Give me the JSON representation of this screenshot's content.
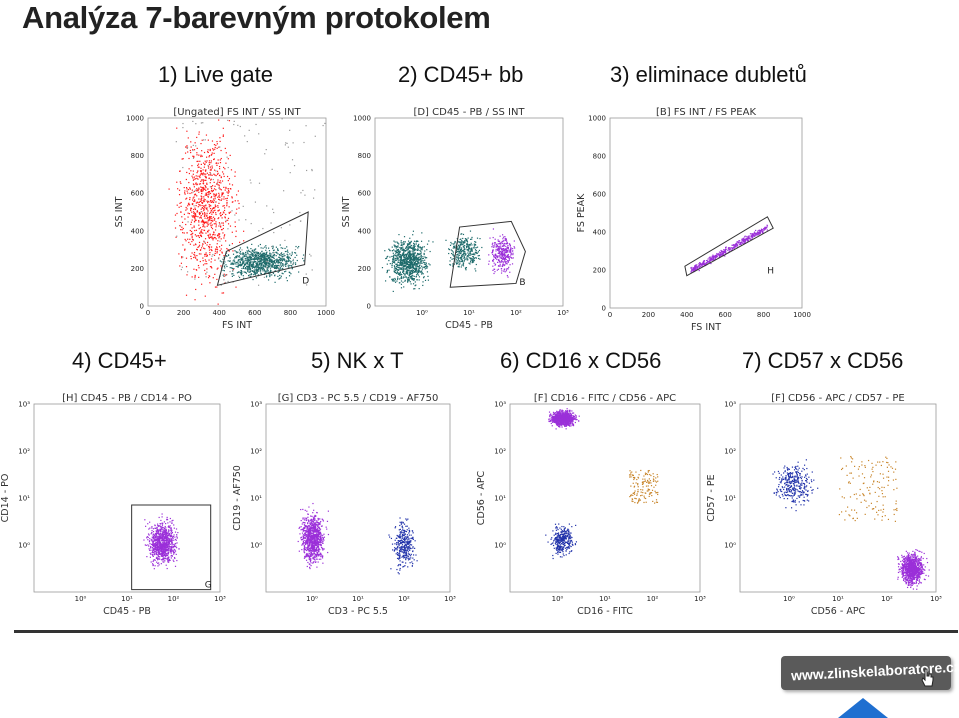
{
  "slide": {
    "title": "Analýza 7-barevným protokolem",
    "captions": [
      "1) Live gate",
      "2) CD45+ bb",
      "3) eliminace dubletů",
      "4) CD45+",
      "5)  NK x T",
      "6) CD16 x CD56",
      "7) CD57 x CD56"
    ],
    "url": "www.zlinskelaboratore.cz",
    "colors": {
      "live": "#ff1a1a",
      "gated": "#1e6b6b",
      "nk": "#8a2be2",
      "blue": "#1a2aa8",
      "orange": "#c8852a",
      "gate_line": "#333333"
    }
  },
  "chart_data": [
    {
      "type": "scatter",
      "title": "[Ungated] FS INT / SS INT",
      "xlabel": "FS INT",
      "ylabel": "SS INT",
      "xlim": [
        0,
        1000
      ],
      "ylim": [
        0,
        1000
      ],
      "xticks": [
        0,
        200,
        400,
        600,
        800,
        1000
      ],
      "yticks": [
        0,
        200,
        400,
        600,
        800,
        1000
      ],
      "gates": [
        {
          "label": "D",
          "points": [
            [
              390,
              110
            ],
            [
              880,
              220
            ],
            [
              900,
              500
            ],
            [
              440,
              290
            ]
          ]
        }
      ],
      "clusters": [
        {
          "color": "red",
          "x": [
            130,
            520
          ],
          "y": [
            50,
            1000
          ],
          "density": "high"
        },
        {
          "color": "teal",
          "x": [
            400,
            860
          ],
          "y": [
            140,
            330
          ],
          "density": "high"
        },
        {
          "color": "grey",
          "x": [
            150,
            1000
          ],
          "y": [
            100,
            1000
          ],
          "density": "low"
        }
      ]
    },
    {
      "type": "scatter",
      "title": "[D] CD45 - PB / SS INT",
      "xlabel": "CD45 - PB",
      "ylabel": "SS INT",
      "xscale": "log",
      "xlim": [
        -1,
        3
      ],
      "ylim": [
        0,
        1000
      ],
      "xticks": [
        "10⁰",
        "10¹",
        "10²",
        "10³"
      ],
      "yticks": [
        0,
        200,
        400,
        600,
        800,
        1000
      ],
      "gates": [
        {
          "label": "B",
          "points": [
            [
              0.6,
              100
            ],
            [
              2.0,
              120
            ],
            [
              2.2,
              290
            ],
            [
              1.9,
              450
            ],
            [
              0.8,
              420
            ]
          ]
        }
      ],
      "clusters": [
        {
          "color": "teal",
          "x": [
            -0.8,
            0.2
          ],
          "y": [
            100,
            380
          ],
          "density": "high"
        },
        {
          "color": "teal",
          "x": [
            0.5,
            1.3
          ],
          "y": [
            180,
            400
          ],
          "density": "medium"
        },
        {
          "color": "purple",
          "x": [
            1.4,
            2.0
          ],
          "y": [
            150,
            400
          ],
          "density": "medium"
        }
      ]
    },
    {
      "type": "scatter",
      "title": "[B] FS INT / FS PEAK",
      "xlabel": "FS INT",
      "ylabel": "FS PEAK",
      "xlim": [
        0,
        1000
      ],
      "ylim": [
        0,
        1000
      ],
      "xticks": [
        0,
        200,
        400,
        600,
        800,
        1000
      ],
      "yticks": [
        0,
        200,
        400,
        600,
        800,
        1000
      ],
      "gates": [
        {
          "label": "H",
          "points": [
            [
              400,
              170
            ],
            [
              850,
              420
            ],
            [
              820,
              480
            ],
            [
              390,
              220
            ]
          ]
        }
      ],
      "clusters": [
        {
          "color": "purple",
          "x": [
            420,
            820
          ],
          "y": [
            200,
            430
          ],
          "density": "diagonal"
        }
      ]
    },
    {
      "type": "scatter",
      "title": "[H] CD45 - PB / CD14 - PO",
      "xlabel": "CD45 - PB",
      "ylabel": "CD14 - PO",
      "xscale": "log",
      "yscale": "log",
      "xlim": [
        -1,
        3
      ],
      "ylim": [
        -1,
        3
      ],
      "xticks": [
        "10⁰",
        "10¹",
        "10²",
        "10³"
      ],
      "yticks": [
        "10⁰",
        "10¹",
        "10²",
        "10³"
      ],
      "gates": [
        {
          "label": "G",
          "points": [
            [
              1.1,
              -0.95
            ],
            [
              2.8,
              -0.95
            ],
            [
              2.8,
              0.85
            ],
            [
              1.1,
              0.85
            ]
          ]
        }
      ],
      "clusters": [
        {
          "color": "purple",
          "x": [
            1.4,
            2.1
          ],
          "y": [
            -0.5,
            0.6
          ],
          "density": "high"
        }
      ]
    },
    {
      "type": "scatter",
      "title": "[G] CD3 - PC 5.5 / CD19 - AF750",
      "xlabel": "CD3 - PC 5.5",
      "ylabel": "CD19 - AF750",
      "xscale": "log",
      "yscale": "log",
      "xlim": [
        -1,
        3
      ],
      "ylim": [
        -1,
        3
      ],
      "xticks": [
        "10⁰",
        "10¹",
        "10²",
        "10³"
      ],
      "yticks": [
        "10⁰",
        "10¹",
        "10²",
        "10³"
      ],
      "clusters": [
        {
          "color": "purple",
          "x": [
            -0.3,
            0.3
          ],
          "y": [
            -0.5,
            0.8
          ],
          "density": "high"
        },
        {
          "color": "blue",
          "x": [
            1.7,
            2.3
          ],
          "y": [
            -0.6,
            0.6
          ],
          "density": "medium"
        }
      ]
    },
    {
      "type": "scatter",
      "title": "[F] CD16 - FITC / CD56 - APC",
      "xlabel": "CD16 - FITC",
      "ylabel": "CD56 - APC",
      "xscale": "log",
      "yscale": "log",
      "xlim": [
        -1,
        3
      ],
      "ylim": [
        -1,
        3
      ],
      "xticks": [
        "10⁰",
        "10¹",
        "10²",
        "10³"
      ],
      "yticks": [
        "10⁰",
        "10¹",
        "10²",
        "10³"
      ],
      "clusters": [
        {
          "color": "purple",
          "x": [
            -0.2,
            0.4
          ],
          "y": [
            2.5,
            2.9
          ],
          "density": "high"
        },
        {
          "color": "blue",
          "x": [
            -0.2,
            0.4
          ],
          "y": [
            -0.3,
            0.5
          ],
          "density": "medium"
        },
        {
          "color": "orange",
          "x": [
            1.5,
            2.1
          ],
          "y": [
            0.9,
            1.6
          ],
          "density": "low"
        }
      ]
    },
    {
      "type": "scatter",
      "title": "[F] CD56 - APC / CD57 - PE",
      "xlabel": "CD56 - APC",
      "ylabel": "CD57 - PE",
      "xscale": "log",
      "yscale": "log",
      "xlim": [
        -1,
        3
      ],
      "ylim": [
        -1,
        3
      ],
      "xticks": [
        "10⁰",
        "10¹",
        "10²",
        "10³"
      ],
      "yticks": [
        "10⁰",
        "10¹",
        "10²",
        "10³"
      ],
      "clusters": [
        {
          "color": "blue",
          "x": [
            -0.4,
            0.6
          ],
          "y": [
            0.8,
            1.8
          ],
          "density": "medium"
        },
        {
          "color": "orange",
          "x": [
            1.0,
            2.2
          ],
          "y": [
            0.5,
            1.9
          ],
          "density": "low"
        },
        {
          "color": "purple",
          "x": [
            2.2,
            2.8
          ],
          "y": [
            -0.9,
            -0.1
          ],
          "density": "high"
        }
      ]
    }
  ]
}
